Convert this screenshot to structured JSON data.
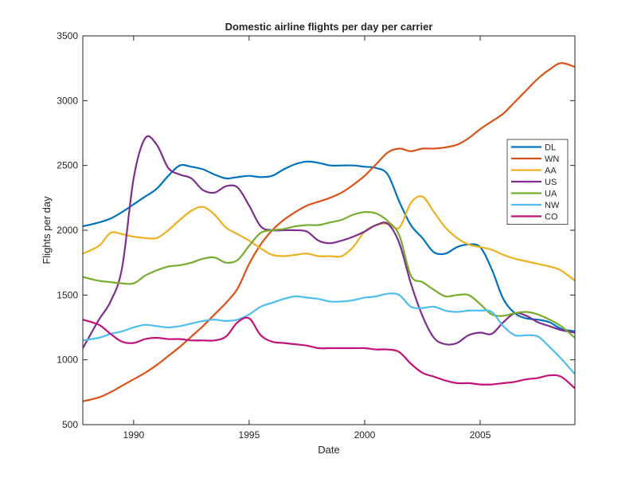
{
  "chart_data": {
    "type": "line",
    "title": "Domestic airline flights per day per carrier",
    "xlabel": "Date",
    "ylabel": "Flights per day",
    "xlim": [
      1987.8,
      2009.1
    ],
    "ylim": [
      500,
      3500
    ],
    "xticks": [
      1990,
      1995,
      2000,
      2005
    ],
    "yticks": [
      500,
      1000,
      1500,
      2000,
      2500,
      3000,
      3500
    ],
    "grid": false,
    "legend_position": "right",
    "x": [
      1987.8,
      1988.5,
      1989,
      1989.5,
      1990,
      1990.5,
      1991,
      1991.5,
      1992,
      1992.5,
      1993,
      1993.5,
      1994,
      1994.5,
      1995,
      1995.5,
      1996,
      1996.5,
      1997,
      1997.5,
      1998,
      1998.5,
      1999,
      1999.5,
      2000,
      2000.5,
      2001,
      2001.5,
      2002,
      2002.5,
      2003,
      2003.5,
      2004,
      2004.5,
      2005,
      2005.5,
      2006,
      2006.5,
      2007,
      2007.5,
      2008,
      2008.5,
      2009.1
    ],
    "series": [
      {
        "name": "DL",
        "color": "#0072BD",
        "values": [
          2030,
          2060,
          2090,
          2140,
          2200,
          2260,
          2320,
          2420,
          2500,
          2490,
          2470,
          2430,
          2400,
          2410,
          2420,
          2410,
          2420,
          2470,
          2510,
          2530,
          2520,
          2500,
          2500,
          2500,
          2490,
          2480,
          2430,
          2220,
          2040,
          1940,
          1830,
          1820,
          1870,
          1890,
          1870,
          1700,
          1470,
          1360,
          1320,
          1310,
          1290,
          1240,
          1220
        ]
      },
      {
        "name": "WN",
        "color": "#D95319",
        "values": [
          680,
          710,
          750,
          800,
          850,
          900,
          960,
          1030,
          1100,
          1180,
          1260,
          1350,
          1440,
          1550,
          1740,
          1890,
          2000,
          2080,
          2140,
          2190,
          2220,
          2250,
          2290,
          2350,
          2420,
          2510,
          2600,
          2630,
          2610,
          2630,
          2630,
          2640,
          2660,
          2710,
          2780,
          2840,
          2900,
          2990,
          3080,
          3170,
          3240,
          3290,
          3260
        ]
      },
      {
        "name": "AA",
        "color": "#EDB120",
        "values": [
          1820,
          1880,
          1980,
          1970,
          1950,
          1940,
          1940,
          2000,
          2080,
          2150,
          2180,
          2120,
          2020,
          1970,
          1920,
          1860,
          1810,
          1800,
          1810,
          1820,
          1800,
          1800,
          1800,
          1870,
          1990,
          2040,
          2050,
          2020,
          2210,
          2260,
          2140,
          2020,
          1940,
          1890,
          1870,
          1850,
          1810,
          1780,
          1760,
          1740,
          1720,
          1690,
          1610
        ]
      },
      {
        "name": "US",
        "color": "#7E2F8E",
        "values": [
          1090,
          1310,
          1450,
          1710,
          2400,
          2710,
          2660,
          2480,
          2430,
          2400,
          2310,
          2290,
          2340,
          2330,
          2190,
          2030,
          2000,
          2000,
          2000,
          1990,
          1920,
          1900,
          1920,
          1950,
          1990,
          2040,
          2050,
          1900,
          1590,
          1340,
          1170,
          1120,
          1130,
          1190,
          1210,
          1200,
          1290,
          1360,
          1340,
          1290,
          1260,
          1230,
          1210
        ]
      },
      {
        "name": "UA",
        "color": "#77AC30",
        "values": [
          1640,
          1610,
          1600,
          1590,
          1590,
          1650,
          1690,
          1720,
          1730,
          1750,
          1780,
          1790,
          1750,
          1770,
          1880,
          1980,
          2000,
          2010,
          2030,
          2040,
          2040,
          2060,
          2080,
          2120,
          2140,
          2130,
          2070,
          1960,
          1650,
          1600,
          1540,
          1490,
          1500,
          1500,
          1430,
          1350,
          1340,
          1360,
          1370,
          1350,
          1310,
          1260,
          1170
        ]
      },
      {
        "name": "NW",
        "color": "#4DBEEE",
        "values": [
          1150,
          1170,
          1200,
          1220,
          1250,
          1270,
          1260,
          1250,
          1260,
          1280,
          1300,
          1310,
          1300,
          1310,
          1350,
          1410,
          1440,
          1470,
          1490,
          1480,
          1470,
          1450,
          1450,
          1460,
          1480,
          1490,
          1510,
          1500,
          1410,
          1400,
          1410,
          1380,
          1370,
          1380,
          1380,
          1370,
          1260,
          1190,
          1190,
          1180,
          1100,
          1010,
          890
        ]
      },
      {
        "name": "CO",
        "color": "#C2127A",
        "values": [
          1310,
          1270,
          1200,
          1140,
          1130,
          1160,
          1170,
          1160,
          1160,
          1150,
          1150,
          1150,
          1180,
          1290,
          1320,
          1190,
          1140,
          1130,
          1120,
          1110,
          1090,
          1090,
          1090,
          1090,
          1090,
          1080,
          1080,
          1060,
          970,
          900,
          870,
          840,
          820,
          820,
          810,
          810,
          820,
          830,
          850,
          860,
          880,
          870,
          780
        ]
      }
    ]
  }
}
